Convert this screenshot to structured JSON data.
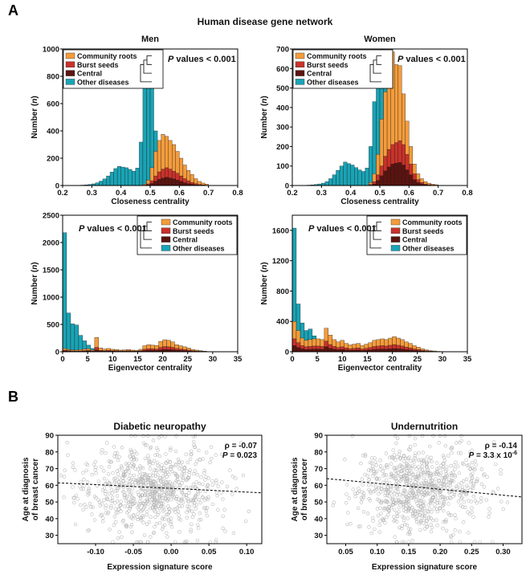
{
  "figure": {
    "panel_a_letter": "A",
    "panel_b_letter": "B",
    "panel_a_title": "Human disease gene network",
    "colors": {
      "community_roots": "#f39c3c",
      "burst_seeds": "#c8322a",
      "central": "#5a1410",
      "other_diseases": "#1aa3b5",
      "scatter_point": "#b8b8b8"
    },
    "legend_labels": [
      "Community roots",
      "Burst seeds",
      "Central",
      "Other diseases"
    ],
    "pvalue_prefix": "P",
    "pvalue_suffix": " values < 0.001"
  },
  "chart_data": [
    {
      "id": "men-closeness",
      "type": "bar",
      "column_title": "Men",
      "xlabel": "Closeness centrality",
      "ylabel": "Number (n)",
      "xlim": [
        0.2,
        0.8
      ],
      "ylim": [
        0,
        1000
      ],
      "xticks": [
        "0.2",
        "0.3",
        "0.4",
        "0.5",
        "0.6",
        "0.7",
        "0.8"
      ],
      "yticks": [
        "0",
        "200",
        "400",
        "600",
        "800",
        "1000"
      ],
      "legend_position": "top-left",
      "bin_start": 0.25,
      "bin_width": 0.0125,
      "series": [
        {
          "name": "Other diseases",
          "values": [
            2,
            3,
            5,
            8,
            12,
            20,
            32,
            48,
            70,
            98,
            124,
            140,
            135,
            130,
            118,
            105,
            128,
            318,
            760,
            975,
            830,
            400,
            190,
            110,
            70,
            45,
            30,
            20,
            14,
            10,
            8,
            6,
            5,
            4,
            3,
            2
          ]
        },
        {
          "name": "Community roots",
          "values": [
            0,
            0,
            0,
            0,
            0,
            0,
            0,
            0,
            0,
            0,
            0,
            0,
            0,
            0,
            0,
            0,
            0,
            2,
            10,
            40,
            130,
            250,
            330,
            375,
            360,
            330,
            300,
            250,
            200,
            150,
            110,
            80,
            50,
            30,
            18,
            10
          ]
        },
        {
          "name": "Burst seeds",
          "values": [
            0,
            0,
            0,
            0,
            0,
            0,
            0,
            0,
            0,
            0,
            0,
            0,
            0,
            0,
            0,
            0,
            0,
            0,
            3,
            12,
            35,
            70,
            100,
            120,
            130,
            120,
            105,
            90,
            70,
            50,
            35,
            22,
            14,
            8,
            4,
            2
          ]
        },
        {
          "name": "Central",
          "values": [
            0,
            0,
            0,
            0,
            0,
            0,
            0,
            0,
            0,
            0,
            0,
            0,
            0,
            0,
            0,
            0,
            0,
            0,
            1,
            5,
            15,
            30,
            45,
            55,
            60,
            55,
            48,
            40,
            30,
            20,
            14,
            9,
            5,
            3,
            2,
            1
          ]
        }
      ]
    },
    {
      "id": "women-closeness",
      "type": "bar",
      "column_title": "Women",
      "xlabel": "Closeness centrality",
      "ylabel": "Number (n)",
      "xlim": [
        0.2,
        0.8
      ],
      "ylim": [
        0,
        700
      ],
      "xticks": [
        "0.2",
        "0.3",
        "0.4",
        "0.5",
        "0.6",
        "0.7",
        "0.8"
      ],
      "yticks": [
        "0",
        "100",
        "200",
        "300",
        "400",
        "500",
        "600",
        "700"
      ],
      "legend_position": "top-left",
      "bin_start": 0.25,
      "bin_width": 0.0125,
      "series": [
        {
          "name": "Other diseases",
          "values": [
            2,
            3,
            5,
            8,
            12,
            20,
            35,
            55,
            78,
            100,
            120,
            112,
            105,
            92,
            80,
            72,
            90,
            200,
            430,
            640,
            700,
            500,
            300,
            150,
            90,
            60,
            40,
            28,
            20,
            14,
            10,
            7,
            5,
            4,
            3,
            2
          ]
        },
        {
          "name": "Community roots",
          "values": [
            0,
            0,
            0,
            0,
            0,
            0,
            0,
            0,
            0,
            0,
            0,
            0,
            0,
            0,
            0,
            0,
            0,
            15,
            60,
            160,
            340,
            480,
            610,
            685,
            620,
            615,
            470,
            330,
            200,
            110,
            60,
            35,
            20,
            12,
            7,
            4
          ]
        },
        {
          "name": "Burst seeds",
          "values": [
            0,
            0,
            0,
            0,
            0,
            0,
            0,
            0,
            0,
            0,
            0,
            0,
            0,
            0,
            0,
            0,
            0,
            5,
            20,
            55,
            100,
            150,
            185,
            210,
            220,
            230,
            210,
            160,
            110,
            60,
            30,
            15,
            8,
            4,
            2,
            1
          ]
        },
        {
          "name": "Central",
          "values": [
            0,
            0,
            0,
            0,
            0,
            0,
            0,
            0,
            0,
            0,
            0,
            0,
            0,
            0,
            0,
            0,
            0,
            2,
            8,
            25,
            50,
            75,
            95,
            110,
            115,
            118,
            105,
            80,
            55,
            30,
            15,
            8,
            4,
            2,
            1,
            0
          ]
        }
      ]
    },
    {
      "id": "men-eigenvector",
      "type": "bar",
      "xlabel": "Eigenvector centrality",
      "ylabel": "Number (n)",
      "xlim": [
        0,
        35
      ],
      "ylim": [
        0,
        2500
      ],
      "xticks": [
        "0",
        "5",
        "10",
        "15",
        "20",
        "25",
        "30",
        "35"
      ],
      "yticks": [
        "0",
        "500",
        "1000",
        "1500",
        "2000",
        "2500"
      ],
      "legend_position": "top-right",
      "bin_start": 0,
      "bin_width": 0.8,
      "series": [
        {
          "name": "Other diseases",
          "values": [
            2180,
            710,
            510,
            490,
            300,
            200,
            120,
            60,
            30,
            20,
            15,
            12,
            10,
            8,
            6,
            5,
            4,
            3,
            3,
            2,
            2,
            2,
            1,
            1,
            1,
            1,
            1,
            1,
            1,
            1,
            1,
            1,
            0,
            0,
            0,
            0,
            0,
            0,
            0,
            0,
            0,
            0,
            0,
            0
          ]
        },
        {
          "name": "Community roots",
          "values": [
            60,
            40,
            35,
            30,
            40,
            50,
            55,
            30,
            260,
            70,
            50,
            60,
            45,
            40,
            30,
            35,
            40,
            30,
            25,
            45,
            110,
            130,
            120,
            115,
            190,
            220,
            210,
            180,
            130,
            110,
            90,
            70,
            40,
            30,
            20,
            10,
            5,
            3,
            2,
            1,
            0,
            0,
            0,
            0
          ]
        },
        {
          "name": "Burst seeds",
          "values": [
            30,
            20,
            15,
            12,
            15,
            20,
            25,
            15,
            80,
            25,
            20,
            25,
            20,
            18,
            15,
            15,
            18,
            14,
            12,
            20,
            45,
            55,
            55,
            50,
            80,
            95,
            90,
            80,
            60,
            50,
            40,
            30,
            18,
            14,
            9,
            5,
            3,
            2,
            1,
            0,
            0,
            0,
            0,
            0
          ]
        },
        {
          "name": "Central",
          "values": [
            15,
            10,
            8,
            6,
            8,
            10,
            12,
            8,
            30,
            12,
            10,
            12,
            10,
            9,
            7,
            8,
            9,
            7,
            6,
            10,
            20,
            25,
            25,
            24,
            35,
            42,
            40,
            36,
            28,
            24,
            18,
            14,
            8,
            6,
            4,
            2,
            1,
            1,
            0,
            0,
            0,
            0,
            0,
            0
          ]
        }
      ]
    },
    {
      "id": "women-eigenvector",
      "type": "bar",
      "xlabel": "Eigenvector centrality",
      "ylabel": "Number (n)",
      "xlim": [
        0,
        35
      ],
      "ylim": [
        0,
        1800
      ],
      "xticks": [
        "0",
        "5",
        "10",
        "15",
        "20",
        "25",
        "30",
        "35"
      ],
      "yticks": [
        "0",
        "400",
        "800",
        "1200",
        "1600"
      ],
      "legend_position": "top-right",
      "bin_start": 0,
      "bin_width": 0.8,
      "series": [
        {
          "name": "Other diseases",
          "values": [
            1630,
            630,
            380,
            280,
            300,
            210,
            130,
            90,
            60,
            40,
            30,
            25,
            20,
            15,
            12,
            10,
            8,
            6,
            5,
            4,
            3,
            3,
            2,
            2,
            2,
            2,
            1,
            1,
            1,
            1,
            1,
            1,
            0,
            0,
            0,
            0,
            0,
            0,
            0,
            0,
            0,
            0,
            0,
            0
          ]
        },
        {
          "name": "Community roots",
          "values": [
            400,
            280,
            180,
            150,
            160,
            170,
            170,
            160,
            310,
            220,
            160,
            130,
            150,
            110,
            90,
            100,
            110,
            80,
            100,
            120,
            150,
            160,
            170,
            160,
            180,
            200,
            180,
            160,
            130,
            110,
            80,
            60,
            40,
            25,
            15,
            10,
            5,
            3,
            2,
            1,
            0,
            0,
            0,
            0
          ]
        },
        {
          "name": "Burst seeds",
          "values": [
            170,
            120,
            80,
            65,
            70,
            75,
            75,
            70,
            140,
            95,
            70,
            55,
            65,
            50,
            40,
            45,
            50,
            36,
            45,
            55,
            70,
            75,
            80,
            75,
            85,
            95,
            85,
            75,
            60,
            50,
            37,
            28,
            18,
            12,
            7,
            4,
            2,
            1,
            1,
            0,
            0,
            0,
            0,
            0
          ]
        },
        {
          "name": "Central",
          "values": [
            80,
            55,
            38,
            30,
            32,
            34,
            34,
            32,
            65,
            44,
            33,
            26,
            30,
            23,
            18,
            20,
            22,
            16,
            20,
            24,
            32,
            34,
            36,
            34,
            38,
            42,
            38,
            34,
            27,
            23,
            17,
            13,
            8,
            5,
            3,
            2,
            1,
            1,
            0,
            0,
            0,
            0,
            0,
            0
          ]
        }
      ]
    },
    {
      "id": "diabetic-neuropathy",
      "type": "scatter",
      "title": "Diabetic neuropathy",
      "xlabel": "Expression signature score",
      "ylabel_line1": "Age at diagnosis",
      "ylabel_line2": "of breast cancer",
      "xlim": [
        -0.15,
        0.12
      ],
      "ylim": [
        25,
        90
      ],
      "xticks": [
        "-0.10",
        "-0.05",
        "0.00",
        "0.05",
        "0.10"
      ],
      "yticks": [
        "30",
        "40",
        "50",
        "60",
        "70",
        "80",
        "90"
      ],
      "rho_text": "ρ = -0.07",
      "p_label": "P",
      "p_value_text": " = 0.023",
      "x_mean": -0.025,
      "x_sd": 0.045,
      "y_mean": 58,
      "y_sd": 13,
      "n_points": 800,
      "trend": {
        "x": [
          -0.15,
          0.12
        ],
        "y": [
          61.5,
          55.5
        ]
      }
    },
    {
      "id": "undernutrition",
      "type": "scatter",
      "title": "Undernutrition",
      "xlabel": "Expression signature score",
      "ylabel_line1": "Age at diagnosis",
      "ylabel_line2": "of breast cancer",
      "xlim": [
        0.02,
        0.33
      ],
      "ylim": [
        25,
        90
      ],
      "xticks": [
        "0.05",
        "0.10",
        "0.15",
        "0.20",
        "0.25",
        "0.30"
      ],
      "yticks": [
        "30",
        "40",
        "50",
        "60",
        "70",
        "80",
        "90"
      ],
      "rho_text": "ρ = -0.14",
      "p_label": "P",
      "p_value_text": " = 3.3 x 10",
      "p_value_exponent": "-6",
      "x_mean": 0.165,
      "x_sd": 0.05,
      "y_mean": 58,
      "y_sd": 13,
      "n_points": 800,
      "trend": {
        "x": [
          0.02,
          0.33
        ],
        "y": [
          64,
          53
        ]
      }
    }
  ]
}
